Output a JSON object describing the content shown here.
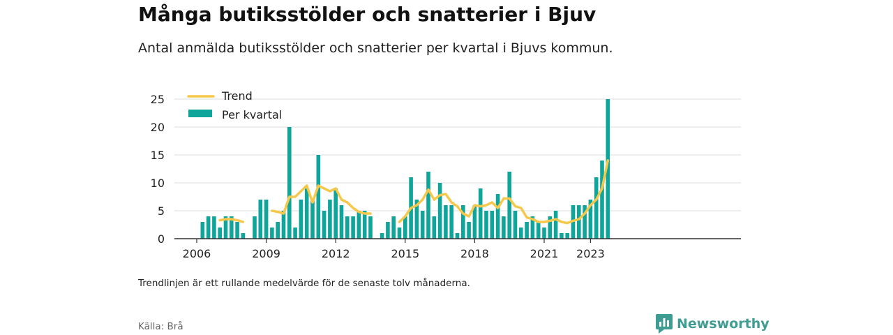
{
  "title": "Många butiksstölder och snatterier i Bjuv",
  "subtitle": "Antal anmälda butiksstölder och snatterier per kvartal i Bjuvs kommun.",
  "footnote": "Trendlinjen är ett rullande medelvärde för de senaste tolv månaderna.",
  "source": "Källa: Brå",
  "brand": {
    "name": "Newsworthy",
    "icon": "newsworthy-logo-icon"
  },
  "colors": {
    "bar": "#10a59a",
    "trend": "#f5c84c",
    "axis": "#333333",
    "grid": "#dddddd",
    "brand": "#3f9c92"
  },
  "chart_data": {
    "type": "bar",
    "x_unit": "quarter",
    "x_start": "2006 Q1",
    "x_end": "2023 Q2",
    "xticks": [
      "2006",
      "2009",
      "2012",
      "2015",
      "2018",
      "2021",
      "2023"
    ],
    "yticks": [
      0,
      5,
      10,
      15,
      20,
      25
    ],
    "ylim": [
      0,
      25
    ],
    "grid": true,
    "legend": {
      "position": "top-left",
      "items": [
        "Trend",
        "Per kvartal"
      ]
    },
    "series": [
      {
        "name": "Per kvartal",
        "type": "bar",
        "values": [
          0,
          3,
          4,
          4,
          2,
          4,
          4,
          3,
          1,
          0,
          4,
          7,
          7,
          2,
          3,
          5,
          20,
          2,
          7,
          9,
          7,
          15,
          5,
          7,
          9,
          6,
          4,
          4,
          5,
          5,
          4,
          0,
          1,
          3,
          4,
          2,
          4,
          11,
          7,
          5,
          12,
          4,
          10,
          6,
          6,
          1,
          6,
          3,
          6,
          9,
          5,
          5,
          8,
          4,
          12,
          5,
          2,
          3,
          4,
          3,
          2,
          4,
          5,
          1,
          1,
          6,
          6,
          6,
          7,
          11,
          14,
          25
        ]
      },
      {
        "name": "Trend",
        "type": "line",
        "values": [
          null,
          null,
          null,
          null,
          3.3,
          3.5,
          3.5,
          3.3,
          3.0,
          null,
          null,
          null,
          null,
          5.0,
          4.8,
          4.5,
          7.5,
          7.5,
          8.5,
          9.5,
          6.5,
          9.5,
          9.0,
          8.5,
          9.0,
          7.0,
          6.5,
          5.5,
          4.8,
          4.5,
          4.5,
          null,
          null,
          null,
          null,
          3.0,
          4.0,
          5.5,
          6.0,
          7.0,
          8.8,
          7.0,
          7.8,
          8.0,
          6.5,
          5.8,
          4.5,
          4.0,
          6.0,
          5.8,
          6.0,
          6.5,
          5.5,
          7.2,
          7.2,
          5.8,
          5.5,
          3.8,
          3.5,
          3.0,
          3.0,
          3.2,
          3.5,
          3.0,
          2.8,
          3.2,
          3.5,
          4.5,
          6.0,
          7.0,
          9.0,
          14.0
        ]
      }
    ]
  }
}
